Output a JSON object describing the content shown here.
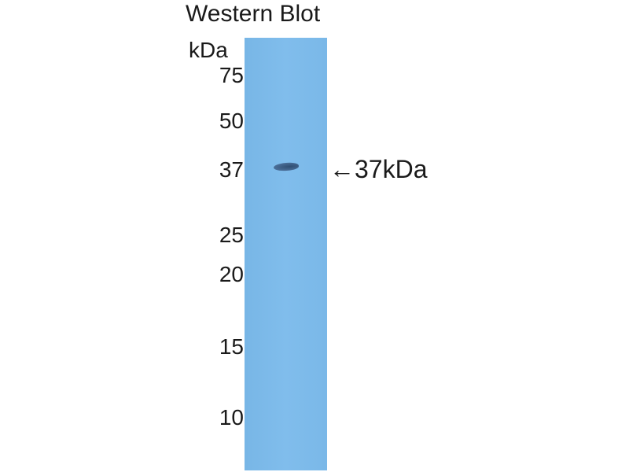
{
  "title": "Western Blot",
  "unit": "kDa",
  "markers": [
    "75",
    "50",
    "37",
    "25",
    "20",
    "15",
    "10"
  ],
  "band_label": "←37kDa",
  "colors": {
    "lane": "#7ab8e8",
    "band": "#3a5a80"
  }
}
